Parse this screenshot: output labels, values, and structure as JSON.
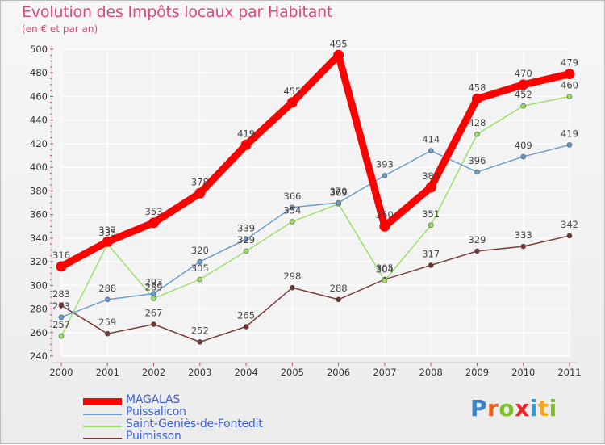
{
  "title": "Evolution des Impôts locaux par Habitant",
  "subtitle": "(en € et par an)",
  "logo": {
    "text": "Proxiti",
    "letter_colors": [
      "#3b82c4",
      "#e85d1a",
      "#7cbf2a",
      "#e8262a",
      "#2a9bd6",
      "#f2a81d",
      "#7cbf2a"
    ]
  },
  "chart_data": {
    "type": "line",
    "title": "Evolution des Impôts locaux par Habitant",
    "subtitle": "(en € et par an)",
    "x": [
      "2000",
      "2001",
      "2002",
      "2003",
      "2004",
      "2005",
      "2006",
      "2007",
      "2008",
      "2009",
      "2010",
      "2011"
    ],
    "ylim": [
      240,
      500
    ],
    "yticks": [
      240,
      260,
      280,
      300,
      320,
      340,
      360,
      380,
      400,
      420,
      440,
      460,
      480,
      500
    ],
    "grid": true,
    "legend_position": "bottom-left",
    "series": [
      {
        "name": "MAGALAS",
        "color": "#ff0000",
        "values": [
          316,
          337,
          353,
          378,
          419,
          455,
          495,
          350,
          383,
          458,
          470,
          479
        ]
      },
      {
        "name": "Puissalicon",
        "color": "#6699cc",
        "values": [
          273,
          288,
          293,
          320,
          339,
          366,
          370,
          393,
          414,
          396,
          409,
          419
        ]
      },
      {
        "name": "Saint-Geniès-de-Fontedit",
        "color": "#99dd66",
        "values": [
          257,
          335,
          289,
          305,
          329,
          354,
          369,
          304,
          351,
          428,
          452,
          460
        ]
      },
      {
        "name": "Puimisson",
        "color": "#773333",
        "values": [
          283,
          259,
          267,
          252,
          265,
          298,
          288,
          305,
          317,
          329,
          333,
          342
        ]
      }
    ]
  }
}
